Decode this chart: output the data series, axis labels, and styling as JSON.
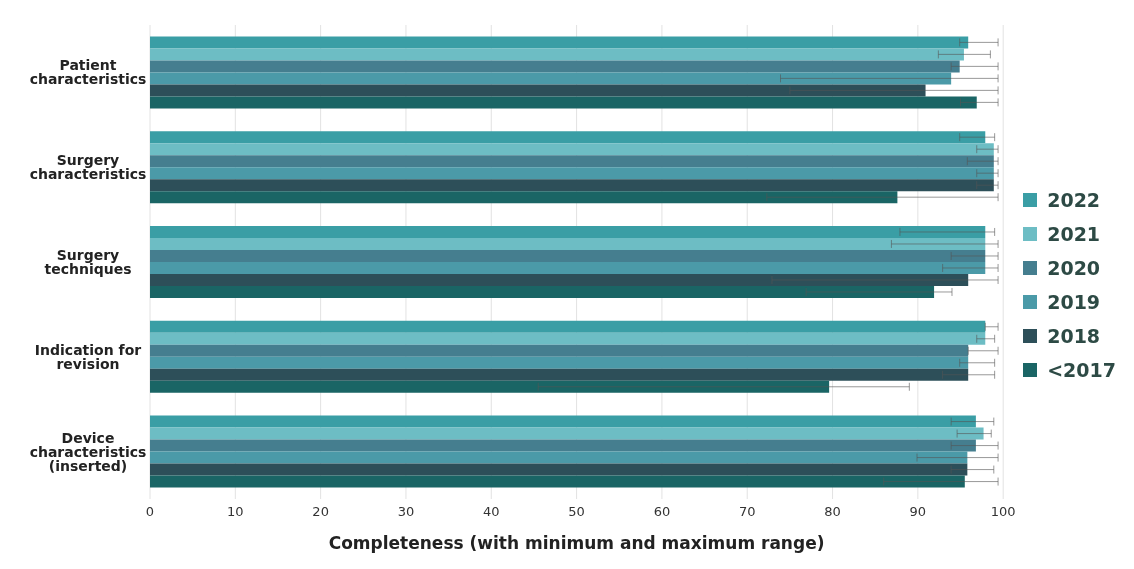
{
  "chart_data": {
    "type": "bar",
    "orientation": "horizontal",
    "xlabel": "Completeness (with minimum and maximum range)",
    "categories": [
      "Patient characteristics",
      "Surgery characteristics",
      "Surgery techniques",
      "Indication for revision",
      "Device characteristics (inserted)"
    ],
    "xlim": [
      0,
      100
    ],
    "xticks": [
      0,
      10,
      20,
      30,
      40,
      50,
      60,
      70,
      80,
      90,
      100
    ],
    "grid": "x",
    "legend": "right",
    "series": [
      {
        "name": "2022",
        "color": "#3a9ea5",
        "values": [
          95.9,
          97.9,
          97.9,
          97.9,
          96.8
        ],
        "errors": [
          [
            94.9,
            99.4
          ],
          [
            94.9,
            99.0
          ],
          [
            87.9,
            99.0
          ],
          [
            97.9,
            99.4
          ],
          [
            93.9,
            98.9
          ]
        ]
      },
      {
        "name": "2021",
        "color": "#6dbdc4",
        "values": [
          95.4,
          98.9,
          97.9,
          97.9,
          97.7
        ],
        "errors": [
          [
            92.4,
            98.5
          ],
          [
            96.9,
            99.4
          ],
          [
            86.9,
            99.4
          ],
          [
            96.9,
            99.0
          ],
          [
            94.6,
            98.6
          ]
        ]
      },
      {
        "name": "2020",
        "color": "#457e8f",
        "values": [
          94.9,
          98.9,
          97.9,
          95.9,
          96.8
        ],
        "errors": [
          [
            93.9,
            99.4
          ],
          [
            95.8,
            99.4
          ],
          [
            93.9,
            99.4
          ],
          [
            95.9,
            99.4
          ],
          [
            93.9,
            99.4
          ]
        ]
      },
      {
        "name": "2019",
        "color": "#4b9aa8",
        "values": [
          93.9,
          98.9,
          97.9,
          95.9,
          95.8
        ],
        "errors": [
          [
            73.9,
            99.4
          ],
          [
            96.9,
            99.4
          ],
          [
            92.9,
            99.4
          ],
          [
            94.9,
            99.0
          ],
          [
            89.9,
            99.4
          ]
        ]
      },
      {
        "name": "2018",
        "color": "#2d4f59",
        "values": [
          90.9,
          98.9,
          95.9,
          95.9,
          95.8
        ],
        "errors": [
          [
            75.0,
            99.4
          ],
          [
            96.9,
            99.4
          ],
          [
            72.9,
            99.4
          ],
          [
            92.9,
            99.0
          ],
          [
            93.9,
            98.9
          ]
        ]
      },
      {
        "name": "<2017",
        "color": "#1a6565",
        "values": [
          96.9,
          87.6,
          91.9,
          79.6,
          95.5
        ],
        "errors": [
          [
            95.0,
            99.4
          ],
          [
            72.3,
            99.4
          ],
          [
            76.9,
            94.0
          ],
          [
            45.5,
            89.0
          ],
          [
            86.0,
            99.4
          ]
        ]
      }
    ]
  }
}
